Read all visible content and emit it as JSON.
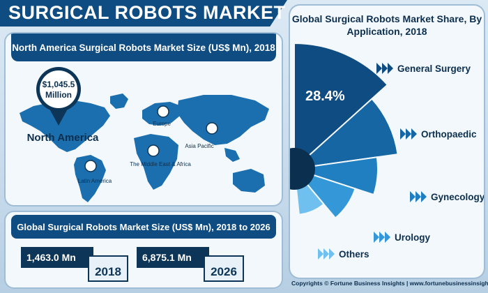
{
  "title": "SURGICAL ROBOTS MARKET",
  "map_section": {
    "header": "North America Surgical Robots Market Size (US$ Mn), 2018",
    "callout_value": "$1,045.5",
    "callout_unit": "Million",
    "regions": {
      "north_america": "North America",
      "europe": "Europe",
      "asia_pacific": "Asia Pacific",
      "middle_east_africa": "The Middle East & Africa",
      "latin_america": "Latin America"
    },
    "colors": {
      "map": "#1c6fae",
      "pin": "#0c3557"
    }
  },
  "size_section": {
    "header": "Global Surgical Robots Market Size (US$ Mn), 2018 to 2026",
    "items": [
      {
        "value": "1,463.0 Mn",
        "year": "2018"
      },
      {
        "value": "6,875.1 Mn",
        "year": "2026"
      }
    ]
  },
  "chart_data": {
    "type": "pie",
    "title": "Global Surgical Robots Market Share, By Application, 2018",
    "categories": [
      "General Surgery",
      "Orthopaedic",
      "Gynecology",
      "Urology",
      "Others"
    ],
    "labeled_share": {
      "category": "General Surgery",
      "value": "28.4%"
    },
    "colors": [
      "#0f4c81",
      "#1566a3",
      "#1f7fc0",
      "#3498d8",
      "#6fc0ef"
    ],
    "legend_placement": "right"
  },
  "footer": "Copyrights © Fortune Business Insights | www.fortunebusinessinsights.com"
}
